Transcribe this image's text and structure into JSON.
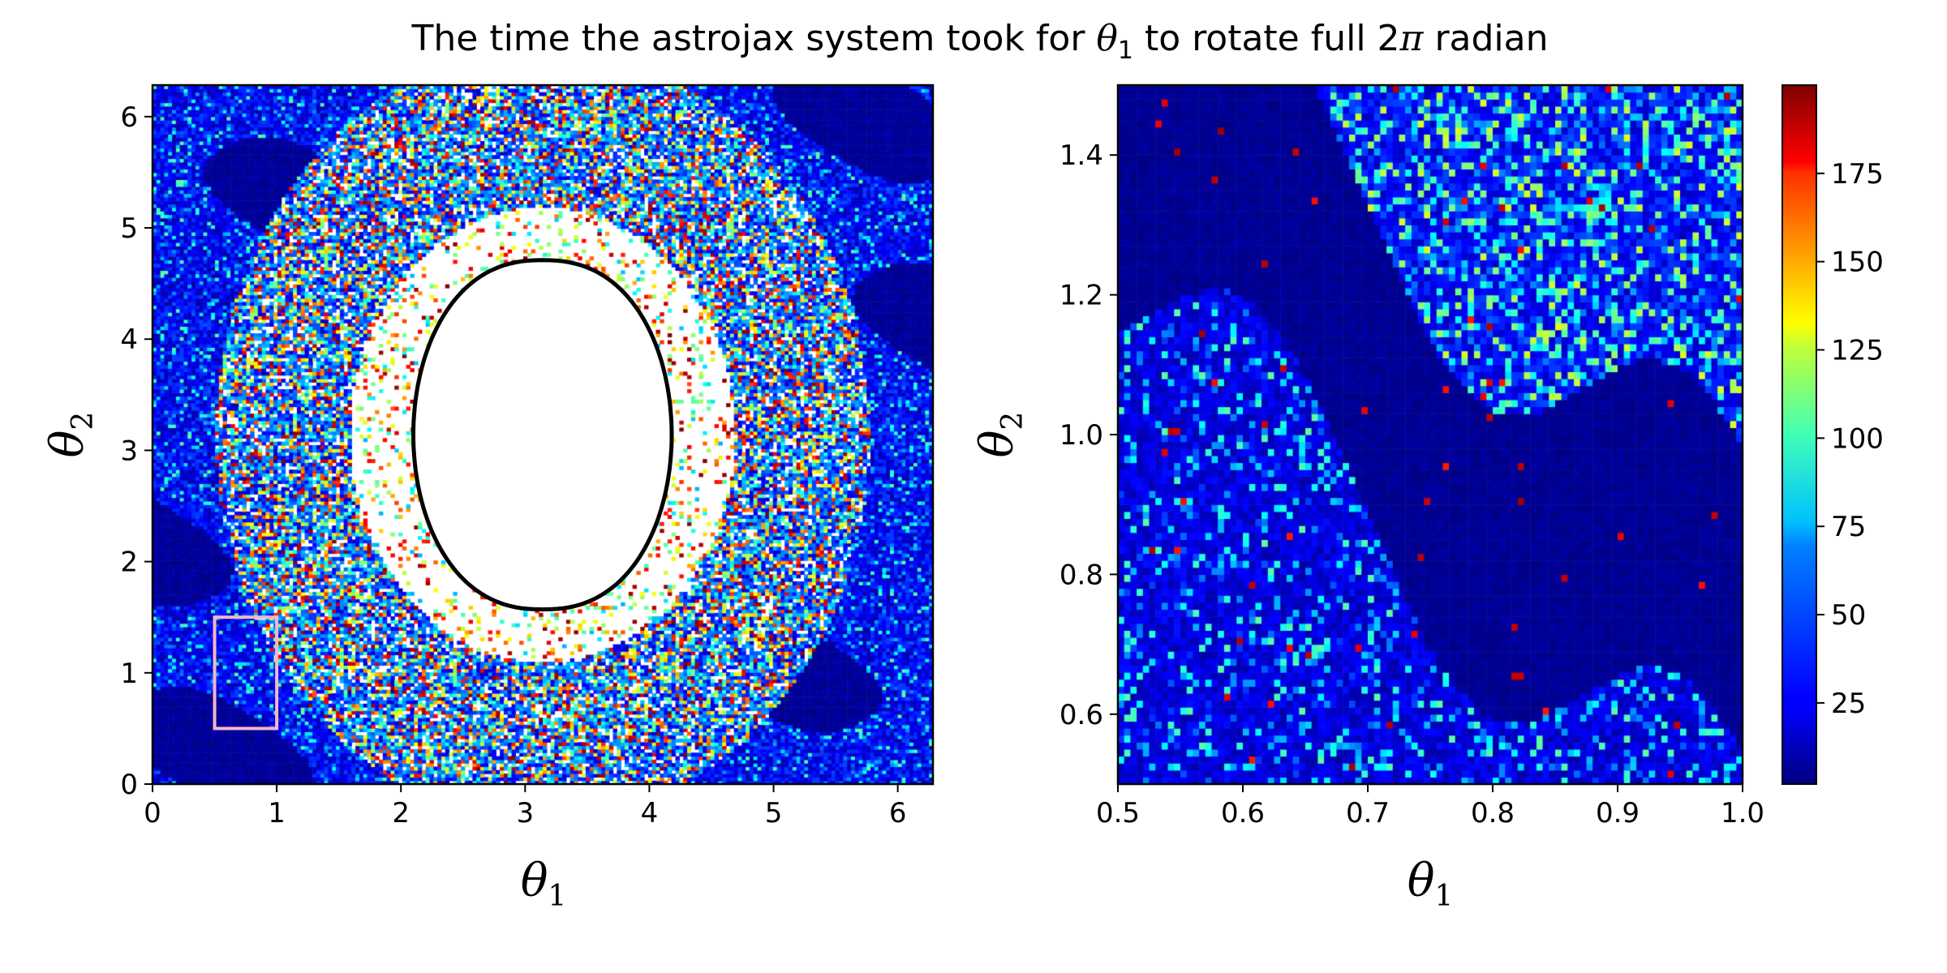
{
  "chart_data": {
    "type": "heatmap",
    "title": {
      "pre": "The time the astrojax system took for ",
      "sym": "θ",
      "sub": "1",
      "mid": " to rotate full 2",
      "pi": "π",
      "post": " radian"
    },
    "colormap": "jet",
    "colorbar": {
      "range": [
        2,
        200
      ],
      "ticks": [
        25,
        50,
        75,
        100,
        125,
        150,
        175
      ]
    },
    "panels": [
      {
        "id": "full",
        "xlabel": {
          "sym": "θ",
          "sub": "1"
        },
        "ylabel": {
          "sym": "θ",
          "sub": "2"
        },
        "xlim": [
          0,
          6.2832
        ],
        "ylim": [
          0,
          6.2832
        ],
        "xticks": [
          0,
          1,
          2,
          3,
          4,
          5,
          6
        ],
        "yticks": [
          0,
          1,
          2,
          3,
          4,
          5,
          6
        ],
        "grid": false,
        "masked_region": {
          "shape": "closed curve",
          "color": "#ffffff",
          "outline": "#000000",
          "x_range": [
            2.1,
            4.18
          ],
          "y_range": [
            1.57,
            4.71
          ]
        },
        "highlight_box": {
          "x": [
            0.5,
            1.0
          ],
          "y": [
            0.5,
            1.5
          ],
          "color": "#f4b6c8"
        }
      },
      {
        "id": "zoom",
        "xlabel": {
          "sym": "θ",
          "sub": "1"
        },
        "ylabel": {
          "sym": "θ",
          "sub": "2"
        },
        "xlim": [
          0.5,
          1.0
        ],
        "ylim": [
          0.5,
          1.5
        ],
        "xticks": [
          "0.5",
          "0.6",
          "0.7",
          "0.8",
          "0.9",
          "1.0"
        ],
        "yticks": [
          "0.6",
          "0.8",
          "1.0",
          "1.2",
          "1.4"
        ],
        "grid": false
      }
    ]
  }
}
